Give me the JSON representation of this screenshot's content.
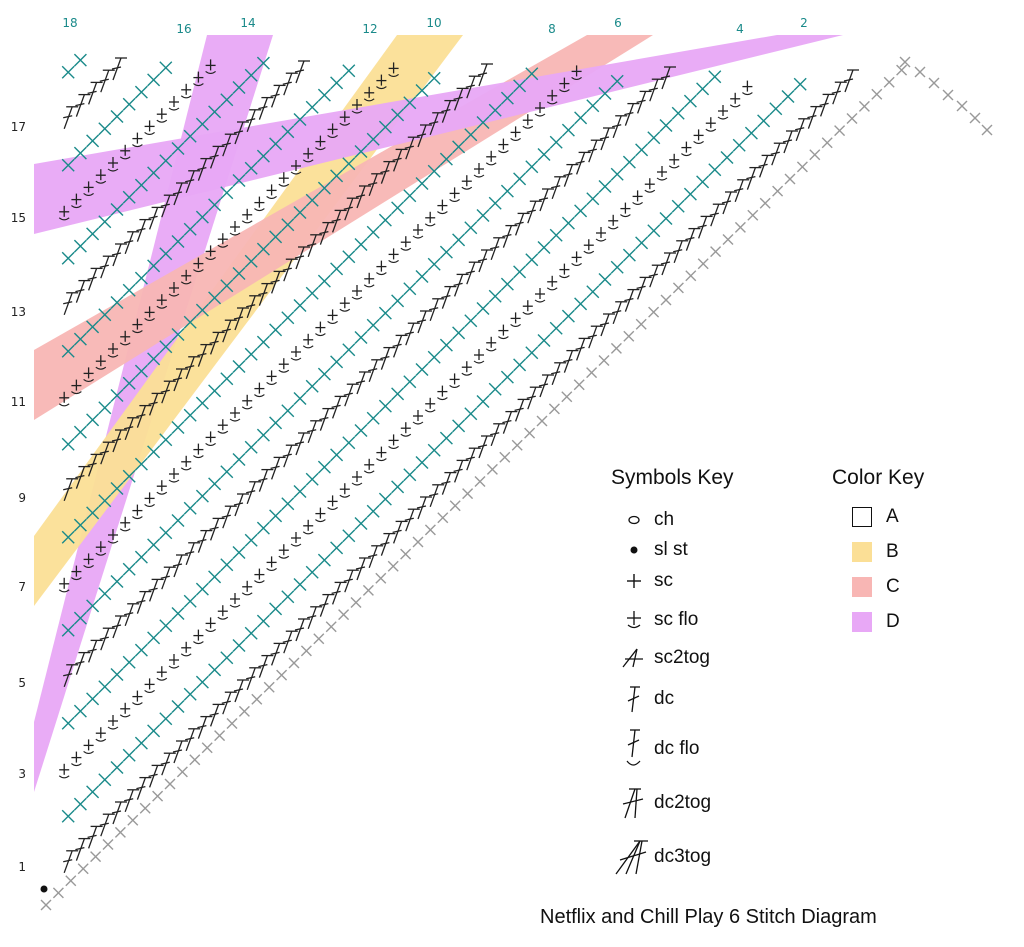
{
  "colors": {
    "A": "#ffffff",
    "B": "#fbdf96",
    "C": "#f8b6b4",
    "D": "#e8a8f6",
    "teal": "#1a8a8a",
    "black": "#111111",
    "gray": "#999999"
  },
  "row_numbers_left": [
    "17",
    "15",
    "13",
    "11",
    "9",
    "7",
    "5",
    "3",
    "1"
  ],
  "row_numbers_top": [
    "18",
    "16",
    "14",
    "12",
    "10",
    "8",
    "6",
    "4",
    "2"
  ],
  "symbols_key": {
    "title": "Symbols Key",
    "items": [
      {
        "icon": "chain-icon",
        "label": "ch"
      },
      {
        "icon": "slip-stitch-icon",
        "label": "sl st"
      },
      {
        "icon": "single-crochet-icon",
        "label": "sc"
      },
      {
        "icon": "sc-front-loop-icon",
        "label": "sc flo"
      },
      {
        "icon": "sc2tog-icon",
        "label": "sc2tog"
      },
      {
        "icon": "double-crochet-icon",
        "label": "dc"
      },
      {
        "icon": "dc-front-loop-icon",
        "label": "dc flo"
      },
      {
        "icon": "dc2tog-icon",
        "label": "dc2tog"
      },
      {
        "icon": "dc3tog-icon",
        "label": "dc3tog"
      }
    ]
  },
  "color_key": {
    "title": "Color Key",
    "items": [
      {
        "label": "A",
        "color": "#ffffff"
      },
      {
        "label": "B",
        "color": "#fbdf96"
      },
      {
        "label": "C",
        "color": "#f8b6b4"
      },
      {
        "label": "D",
        "color": "#e8a8f6"
      }
    ]
  },
  "caption": "Netflix and Chill Play 6 Stitch Diagram"
}
